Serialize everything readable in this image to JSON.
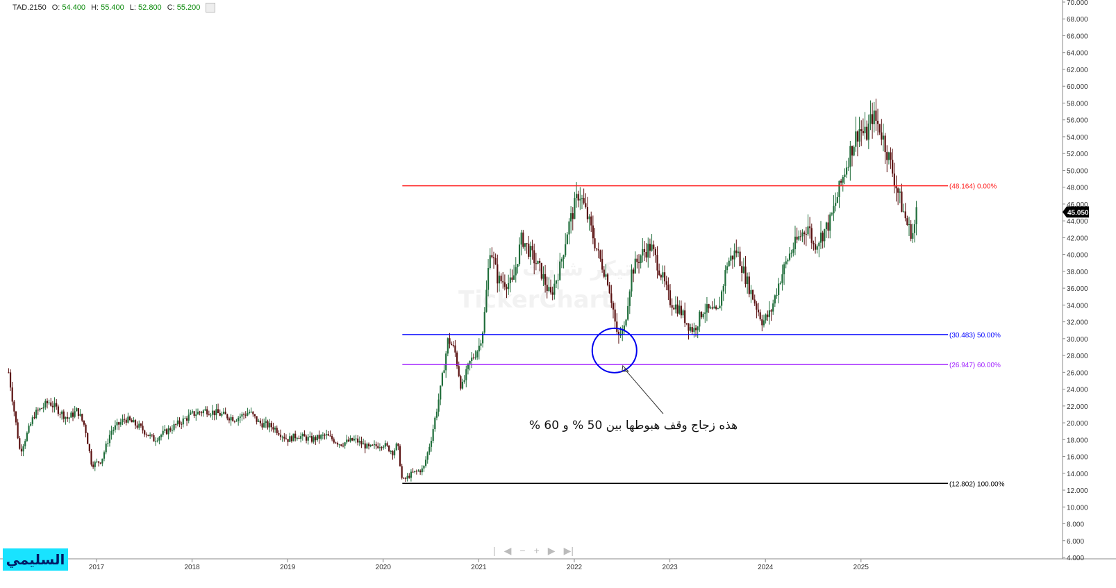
{
  "header": {
    "symbol": "TAD.2150",
    "open_label": "O:",
    "open": "54.400",
    "high_label": "H:",
    "high": "55.400",
    "low_label": "L:",
    "low": "52.800",
    "close_label": "C:",
    "close": "55.200"
  },
  "watermark": "TickerChart",
  "watermark_ar": "تيكر شارت",
  "brand_label": "السليمي",
  "annotation_text": "هذه زجاج وقف هبوطها بين 50 % و 60 %",
  "toolbar": {
    "items": [
      "|",
      "◀",
      "−",
      "+",
      "▶",
      "▶|"
    ]
  },
  "colors": {
    "up_candle": "#1f6d3a",
    "down_candle": "#5a1010",
    "fib_0": "#ff2020",
    "fib_50": "#0000ff",
    "fib_60": "#a020ff",
    "fib_100": "#000000",
    "circle": "#0000ee",
    "last_price_bg": "#000000"
  },
  "chart_data": {
    "type": "candlestick",
    "x_tick_labels": [
      "2017",
      "2018",
      "2019",
      "2020",
      "2021",
      "2022",
      "2023",
      "2024",
      "2025"
    ],
    "y_tick_labels": [
      "4.000",
      "6.000",
      "8.000",
      "10.000",
      "12.000",
      "14.000",
      "16.000",
      "18.000",
      "20.000",
      "22.000",
      "24.000",
      "26.000",
      "28.000",
      "30.000",
      "32.000",
      "34.000",
      "36.000",
      "38.000",
      "40.000",
      "42.000",
      "44.000",
      "46.000",
      "48.000",
      "50.000",
      "52.000",
      "54.000",
      "56.000",
      "58.000",
      "60.000",
      "62.000",
      "64.000",
      "66.000",
      "68.000",
      "70.000"
    ],
    "ylim": [
      4,
      70
    ],
    "last_price": "45.050",
    "fib_levels": [
      {
        "label": "(48.164) 0.00%",
        "value": 48.164,
        "color_key": "fib_0"
      },
      {
        "label": "(30.483) 50.00%",
        "value": 30.483,
        "color_key": "fib_50"
      },
      {
        "label": "(26.947) 60.00%",
        "value": 26.947,
        "color_key": "fib_60"
      },
      {
        "label": "(12.802) 100.00%",
        "value": 12.802,
        "color_key": "fib_100"
      }
    ],
    "fib_start_year": 2020.2,
    "highlight_circle": {
      "year": 2022.42,
      "value": 28.6
    },
    "price_path": [
      [
        2016.08,
        26.0
      ],
      [
        2016.2,
        16.5
      ],
      [
        2016.35,
        21.0
      ],
      [
        2016.5,
        22.5
      ],
      [
        2016.6,
        21.5
      ],
      [
        2016.7,
        20.5
      ],
      [
        2016.8,
        21.5
      ],
      [
        2016.88,
        19.5
      ],
      [
        2016.95,
        15.0
      ],
      [
        2017.05,
        15.5
      ],
      [
        2017.15,
        19.0
      ],
      [
        2017.3,
        20.5
      ],
      [
        2017.45,
        19.5
      ],
      [
        2017.6,
        18.0
      ],
      [
        2017.8,
        19.5
      ],
      [
        2018.0,
        21.0
      ],
      [
        2018.15,
        21.5
      ],
      [
        2018.3,
        21.0
      ],
      [
        2018.45,
        20.5
      ],
      [
        2018.6,
        21.3
      ],
      [
        2018.7,
        20.0
      ],
      [
        2018.85,
        19.5
      ],
      [
        2019.0,
        18.0
      ],
      [
        2019.1,
        18.5
      ],
      [
        2019.25,
        18.0
      ],
      [
        2019.4,
        18.5
      ],
      [
        2019.55,
        17.5
      ],
      [
        2019.7,
        18.0
      ],
      [
        2019.85,
        17.0
      ],
      [
        2020.0,
        17.5
      ],
      [
        2020.1,
        16.5
      ],
      [
        2020.15,
        17.5
      ],
      [
        2020.2,
        13.0
      ],
      [
        2020.3,
        14.0
      ],
      [
        2020.42,
        14.5
      ],
      [
        2020.5,
        18.0
      ],
      [
        2020.6,
        24.0
      ],
      [
        2020.68,
        30.0
      ],
      [
        2020.75,
        28.5
      ],
      [
        2020.82,
        24.0
      ],
      [
        2020.9,
        27.0
      ],
      [
        2021.0,
        29.0
      ],
      [
        2021.05,
        31.5
      ],
      [
        2021.12,
        41.0
      ],
      [
        2021.2,
        37.0
      ],
      [
        2021.35,
        36.5
      ],
      [
        2021.45,
        42.0
      ],
      [
        2021.55,
        40.0
      ],
      [
        2021.65,
        38.0
      ],
      [
        2021.75,
        35.0
      ],
      [
        2021.85,
        38.5
      ],
      [
        2021.93,
        43.0
      ],
      [
        2022.05,
        47.5
      ],
      [
        2022.15,
        44.0
      ],
      [
        2022.25,
        40.0
      ],
      [
        2022.35,
        37.0
      ],
      [
        2022.4,
        34.0
      ],
      [
        2022.45,
        30.0
      ],
      [
        2022.52,
        31.0
      ],
      [
        2022.6,
        38.0
      ],
      [
        2022.7,
        40.0
      ],
      [
        2022.8,
        41.0
      ],
      [
        2022.9,
        38.0
      ],
      [
        2023.0,
        34.5
      ],
      [
        2023.1,
        33.5
      ],
      [
        2023.2,
        31.5
      ],
      [
        2023.25,
        31.0
      ],
      [
        2023.35,
        33.5
      ],
      [
        2023.5,
        33.0
      ],
      [
        2023.6,
        39.0
      ],
      [
        2023.7,
        40.5
      ],
      [
        2023.8,
        37.0
      ],
      [
        2023.9,
        34.0
      ],
      [
        2023.97,
        32.0
      ],
      [
        2024.05,
        33.0
      ],
      [
        2024.15,
        37.0
      ],
      [
        2024.25,
        40.0
      ],
      [
        2024.35,
        42.0
      ],
      [
        2024.45,
        43.5
      ],
      [
        2024.5,
        41.0
      ],
      [
        2024.6,
        42.5
      ],
      [
        2024.68,
        44.0
      ],
      [
        2024.78,
        48.0
      ],
      [
        2024.88,
        52.0
      ],
      [
        2024.98,
        55.0
      ],
      [
        2025.05,
        54.0
      ],
      [
        2025.12,
        56.5
      ],
      [
        2025.2,
        55.0
      ],
      [
        2025.28,
        52.0
      ],
      [
        2025.35,
        49.0
      ],
      [
        2025.42,
        46.0
      ],
      [
        2025.5,
        43.0
      ],
      [
        2025.55,
        42.5
      ],
      [
        2025.58,
        45.05
      ]
    ]
  }
}
